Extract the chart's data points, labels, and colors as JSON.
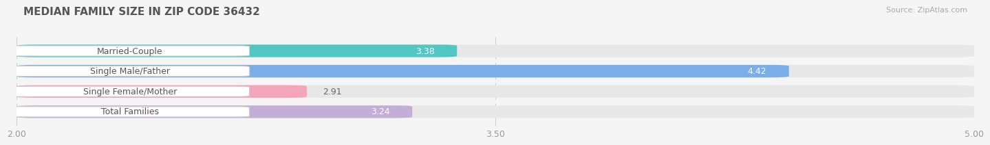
{
  "title": "MEDIAN FAMILY SIZE IN ZIP CODE 36432",
  "source": "Source: ZipAtlas.com",
  "categories": [
    "Married-Couple",
    "Single Male/Father",
    "Single Female/Mother",
    "Total Families"
  ],
  "values": [
    3.38,
    4.42,
    2.91,
    3.24
  ],
  "bar_colors": [
    "#52c5c5",
    "#7aaee8",
    "#f4a4bc",
    "#c4aed8"
  ],
  "xlim": [
    2.0,
    5.0
  ],
  "xticks": [
    2.0,
    3.5,
    5.0
  ],
  "xtick_labels": [
    "2.00",
    "3.50",
    "5.00"
  ],
  "background_color": "#f5f5f5",
  "bar_bg_color": "#e8e8e8",
  "title_fontsize": 11,
  "source_fontsize": 8,
  "label_fontsize": 9,
  "value_fontsize": 9,
  "tick_fontsize": 9,
  "value_inside_color": "white",
  "value_outside_color": "#666666",
  "label_text_color": "#555555"
}
